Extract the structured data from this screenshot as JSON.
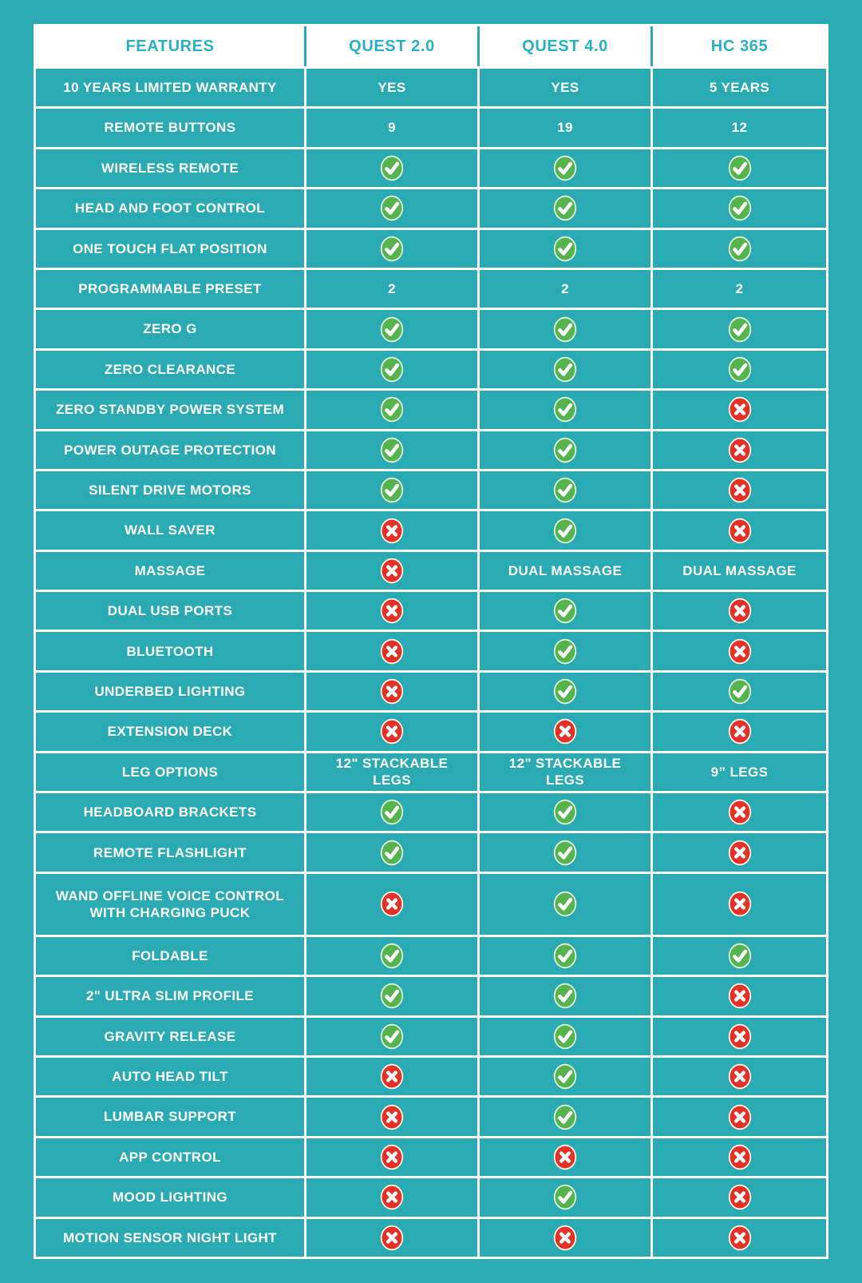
{
  "chart_data": {
    "type": "table",
    "columns": [
      "FEATURES",
      "QUEST 2.0",
      "QUEST 4.0",
      "HC 365"
    ],
    "rows": [
      {
        "feature": "10 YEARS LIMITED WARRANTY",
        "values": [
          {
            "type": "text",
            "text": "YES"
          },
          {
            "type": "text",
            "text": "YES"
          },
          {
            "type": "text",
            "text": "5 YEARS"
          }
        ]
      },
      {
        "feature": "REMOTE BUTTONS",
        "values": [
          {
            "type": "text",
            "text": "9"
          },
          {
            "type": "text",
            "text": "19"
          },
          {
            "type": "text",
            "text": "12"
          }
        ]
      },
      {
        "feature": "WIRELESS REMOTE",
        "values": [
          {
            "type": "icon",
            "icon": "check"
          },
          {
            "type": "icon",
            "icon": "check"
          },
          {
            "type": "icon",
            "icon": "check"
          }
        ]
      },
      {
        "feature": "HEAD AND FOOT CONTROL",
        "values": [
          {
            "type": "icon",
            "icon": "check"
          },
          {
            "type": "icon",
            "icon": "check"
          },
          {
            "type": "icon",
            "icon": "check"
          }
        ]
      },
      {
        "feature": "ONE TOUCH FLAT POSITION",
        "values": [
          {
            "type": "icon",
            "icon": "check"
          },
          {
            "type": "icon",
            "icon": "check"
          },
          {
            "type": "icon",
            "icon": "check"
          }
        ]
      },
      {
        "feature": "PROGRAMMABLE PRESET",
        "values": [
          {
            "type": "text",
            "text": "2"
          },
          {
            "type": "text",
            "text": "2"
          },
          {
            "type": "text",
            "text": "2"
          }
        ]
      },
      {
        "feature": "ZERO G",
        "values": [
          {
            "type": "icon",
            "icon": "check"
          },
          {
            "type": "icon",
            "icon": "check"
          },
          {
            "type": "icon",
            "icon": "check"
          }
        ]
      },
      {
        "feature": "ZERO CLEARANCE",
        "values": [
          {
            "type": "icon",
            "icon": "check"
          },
          {
            "type": "icon",
            "icon": "check"
          },
          {
            "type": "icon",
            "icon": "check"
          }
        ]
      },
      {
        "feature": "ZERO STANDBY POWER SYSTEM",
        "values": [
          {
            "type": "icon",
            "icon": "check"
          },
          {
            "type": "icon",
            "icon": "check"
          },
          {
            "type": "icon",
            "icon": "cross"
          }
        ]
      },
      {
        "feature": "POWER OUTAGE PROTECTION",
        "values": [
          {
            "type": "icon",
            "icon": "check"
          },
          {
            "type": "icon",
            "icon": "check"
          },
          {
            "type": "icon",
            "icon": "cross"
          }
        ]
      },
      {
        "feature": "SILENT DRIVE MOTORS",
        "values": [
          {
            "type": "icon",
            "icon": "check"
          },
          {
            "type": "icon",
            "icon": "check"
          },
          {
            "type": "icon",
            "icon": "cross"
          }
        ]
      },
      {
        "feature": "WALL SAVER",
        "values": [
          {
            "type": "icon",
            "icon": "cross"
          },
          {
            "type": "icon",
            "icon": "check"
          },
          {
            "type": "icon",
            "icon": "cross"
          }
        ]
      },
      {
        "feature": "MASSAGE",
        "values": [
          {
            "type": "icon",
            "icon": "cross"
          },
          {
            "type": "text",
            "text": "DUAL MASSAGE"
          },
          {
            "type": "text",
            "text": "DUAL MASSAGE"
          }
        ]
      },
      {
        "feature": "DUAL USB PORTS",
        "values": [
          {
            "type": "icon",
            "icon": "cross"
          },
          {
            "type": "icon",
            "icon": "check"
          },
          {
            "type": "icon",
            "icon": "cross"
          }
        ]
      },
      {
        "feature": "BLUETOOTH",
        "values": [
          {
            "type": "icon",
            "icon": "cross"
          },
          {
            "type": "icon",
            "icon": "check"
          },
          {
            "type": "icon",
            "icon": "cross"
          }
        ]
      },
      {
        "feature": "UNDERBED LIGHTING",
        "values": [
          {
            "type": "icon",
            "icon": "cross"
          },
          {
            "type": "icon",
            "icon": "check"
          },
          {
            "type": "icon",
            "icon": "check"
          }
        ]
      },
      {
        "feature": "EXTENSION DECK",
        "values": [
          {
            "type": "icon",
            "icon": "cross"
          },
          {
            "type": "icon",
            "icon": "cross"
          },
          {
            "type": "icon",
            "icon": "cross"
          }
        ]
      },
      {
        "feature": "LEG OPTIONS",
        "values": [
          {
            "type": "text",
            "text": "12\" STACKABLE LEGS"
          },
          {
            "type": "text",
            "text": "12\" STACKABLE LEGS"
          },
          {
            "type": "text",
            "text": "9” LEGS"
          }
        ]
      },
      {
        "feature": "HEADBOARD BRACKETS",
        "values": [
          {
            "type": "icon",
            "icon": "check"
          },
          {
            "type": "icon",
            "icon": "check"
          },
          {
            "type": "icon",
            "icon": "cross"
          }
        ]
      },
      {
        "feature": "REMOTE FLASHLIGHT",
        "values": [
          {
            "type": "icon",
            "icon": "check"
          },
          {
            "type": "icon",
            "icon": "check"
          },
          {
            "type": "icon",
            "icon": "cross"
          }
        ]
      },
      {
        "feature": "WAND OFFLINE VOICE CONTROL WITH CHARGING PUCK",
        "tall": true,
        "values": [
          {
            "type": "icon",
            "icon": "cross"
          },
          {
            "type": "icon",
            "icon": "check"
          },
          {
            "type": "icon",
            "icon": "cross"
          }
        ]
      },
      {
        "feature": "FOLDABLE",
        "values": [
          {
            "type": "icon",
            "icon": "check"
          },
          {
            "type": "icon",
            "icon": "check"
          },
          {
            "type": "icon",
            "icon": "check"
          }
        ]
      },
      {
        "feature": "2\" ULTRA SLIM PROFILE",
        "values": [
          {
            "type": "icon",
            "icon": "check"
          },
          {
            "type": "icon",
            "icon": "check"
          },
          {
            "type": "icon",
            "icon": "cross"
          }
        ]
      },
      {
        "feature": "GRAVITY RELEASE",
        "values": [
          {
            "type": "icon",
            "icon": "check"
          },
          {
            "type": "icon",
            "icon": "check"
          },
          {
            "type": "icon",
            "icon": "cross"
          }
        ]
      },
      {
        "feature": "AUTO HEAD TILT",
        "values": [
          {
            "type": "icon",
            "icon": "cross"
          },
          {
            "type": "icon",
            "icon": "check"
          },
          {
            "type": "icon",
            "icon": "cross"
          }
        ]
      },
      {
        "feature": "LUMBAR SUPPORT",
        "values": [
          {
            "type": "icon",
            "icon": "cross"
          },
          {
            "type": "icon",
            "icon": "check"
          },
          {
            "type": "icon",
            "icon": "cross"
          }
        ]
      },
      {
        "feature": "APP CONTROL",
        "values": [
          {
            "type": "icon",
            "icon": "cross"
          },
          {
            "type": "icon",
            "icon": "cross"
          },
          {
            "type": "icon",
            "icon": "cross"
          }
        ]
      },
      {
        "feature": "MOOD LIGHTING",
        "values": [
          {
            "type": "icon",
            "icon": "cross"
          },
          {
            "type": "icon",
            "icon": "check"
          },
          {
            "type": "icon",
            "icon": "cross"
          }
        ]
      },
      {
        "feature": "MOTION SENSOR NIGHT LIGHT",
        "values": [
          {
            "type": "icon",
            "icon": "cross"
          },
          {
            "type": "icon",
            "icon": "cross"
          },
          {
            "type": "icon",
            "icon": "cross"
          }
        ]
      }
    ],
    "legend": {
      "check_icon_meaning": "feature included",
      "cross_icon_meaning": "feature not included"
    }
  },
  "colors": {
    "teal_background": "#2aabb4",
    "header_text": "#29b1c3",
    "cell_text": "#ffffff",
    "border": "#ffffff",
    "check_green": "#56b44e",
    "check_ring": "#dff0da",
    "cross_red": "#e43127",
    "cross_ring": "#f7efdf"
  }
}
